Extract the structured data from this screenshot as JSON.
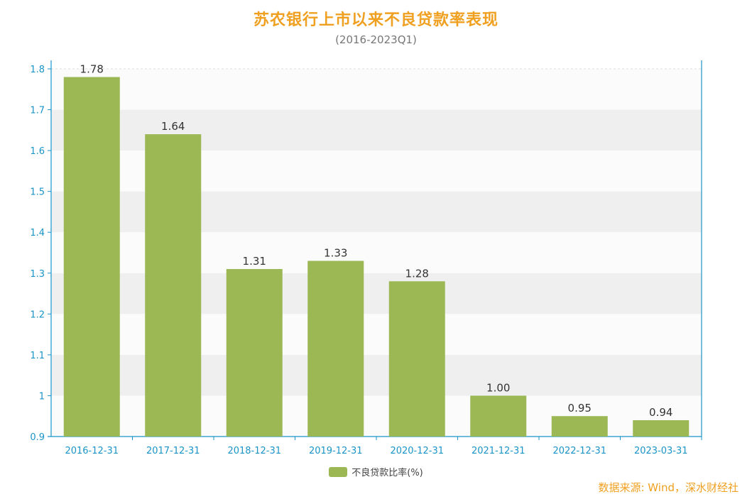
{
  "colors": {
    "title": "#f0a020",
    "bar": "#9bb855",
    "axis": "#1a94c8",
    "band": "#efefef",
    "label": "#333333",
    "source": "#f0a020"
  },
  "chart_data": {
    "type": "bar",
    "title": "苏农银行上市以来不良贷款率表现",
    "subtitle": "(2016-2023Q1)",
    "categories": [
      "2016-12-31",
      "2017-12-31",
      "2018-12-31",
      "2019-12-31",
      "2020-12-31",
      "2021-12-31",
      "2022-12-31",
      "2023-03-31"
    ],
    "series": [
      {
        "name": "不良贷款比率(%)",
        "values": [
          1.78,
          1.64,
          1.31,
          1.33,
          1.28,
          1.0,
          0.95,
          0.94
        ],
        "value_labels": [
          "1.78",
          "1.64",
          "1.31",
          "1.33",
          "1.28",
          "1.00",
          "0.95",
          "0.94"
        ]
      }
    ],
    "ylim": [
      0.9,
      1.8
    ],
    "yticks": [
      0.9,
      1,
      1.1,
      1.2,
      1.3,
      1.4,
      1.5,
      1.6,
      1.7,
      1.8
    ],
    "ytick_labels": [
      "0.9",
      "1",
      "1.1",
      "1.2",
      "1.3",
      "1.4",
      "1.5",
      "1.6",
      "1.7",
      "1.8"
    ],
    "xlabel": "",
    "ylabel": "",
    "grid": "horizontal bands",
    "legend": "bottom-center"
  },
  "source": "数据来源: Wind，深水财经社"
}
